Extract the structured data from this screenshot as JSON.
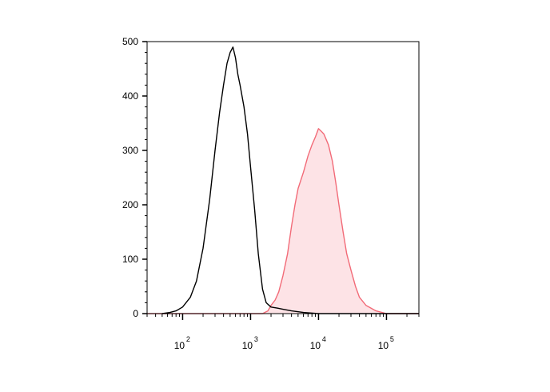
{
  "chart_data": {
    "type": "area",
    "title": "",
    "xlabel": "",
    "ylabel": "",
    "x_scale": "log",
    "xlim": [
      30,
      300000
    ],
    "ylim": [
      0,
      500
    ],
    "grid": false,
    "y_ticks": [
      {
        "value": 0,
        "label": "0"
      },
      {
        "value": 100,
        "label": "100"
      },
      {
        "value": 200,
        "label": "200"
      },
      {
        "value": 300,
        "label": "300"
      },
      {
        "value": 400,
        "label": "400"
      },
      {
        "value": 500,
        "label": "500"
      }
    ],
    "x_ticks": [
      {
        "value": 100,
        "base": "10",
        "exp": "2"
      },
      {
        "value": 1000,
        "base": "10",
        "exp": "3"
      },
      {
        "value": 10000,
        "base": "10",
        "exp": "4"
      },
      {
        "value": 100000,
        "base": "10",
        "exp": "5"
      }
    ],
    "series": [
      {
        "color": "#000000",
        "fill": "none",
        "x": [
          50,
          65,
          80,
          100,
          130,
          160,
          200,
          250,
          300,
          350,
          400,
          450,
          500,
          550,
          600,
          650,
          700,
          800,
          900,
          1000,
          1150,
          1300,
          1500,
          1700,
          2000,
          2500,
          3000,
          4000,
          6000,
          10000,
          30000,
          300000
        ],
        "y": [
          0,
          2,
          5,
          12,
          30,
          60,
          120,
          210,
          300,
          370,
          420,
          460,
          480,
          490,
          470,
          440,
          420,
          380,
          330,
          270,
          190,
          110,
          45,
          20,
          12,
          10,
          8,
          5,
          2,
          0,
          0,
          0
        ]
      },
      {
        "color": "#f26b78",
        "fill": "#fde3e6",
        "x": [
          30,
          1500,
          1800,
          2000,
          2300,
          2600,
          3000,
          3500,
          4000,
          4500,
          5000,
          6000,
          7000,
          8000,
          9000,
          10000,
          11000,
          12000,
          14000,
          16000,
          18000,
          20000,
          23000,
          26000,
          30000,
          35000,
          40000,
          50000,
          70000,
          100000,
          300000
        ],
        "y": [
          0,
          0,
          5,
          15,
          25,
          40,
          70,
          110,
          160,
          200,
          230,
          260,
          290,
          310,
          325,
          340,
          335,
          330,
          310,
          280,
          240,
          200,
          150,
          110,
          80,
          50,
          30,
          15,
          5,
          0,
          0
        ]
      }
    ]
  }
}
